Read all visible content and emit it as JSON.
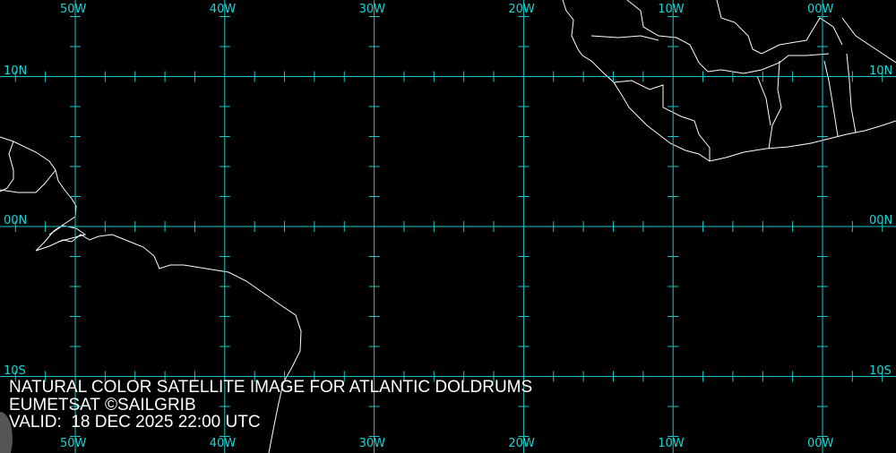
{
  "map": {
    "grid_color": "#19c8c8",
    "coast_color": "#ffffff",
    "longitudes": [
      {
        "label": "50W",
        "value": -50
      },
      {
        "label": "40W",
        "value": -40
      },
      {
        "label": "30W",
        "value": -30
      },
      {
        "label": "20W",
        "value": -20
      },
      {
        "label": "10W",
        "value": -10
      },
      {
        "label": "00W",
        "value": 0
      }
    ],
    "latitudes": [
      {
        "label": "10N",
        "value": 10
      },
      {
        "label": "00N",
        "value": 0
      },
      {
        "label": "10S",
        "value": -10
      }
    ],
    "tick_interval_deg": 2
  },
  "caption": {
    "title": "NATURAL COLOR SATELLITE IMAGE FOR ATLANTIC DOLDRUMS",
    "credit": "EUMETSAT ©SAILGRIB",
    "valid": "VALID:  18 DEC 2025 22:00 UTC"
  }
}
